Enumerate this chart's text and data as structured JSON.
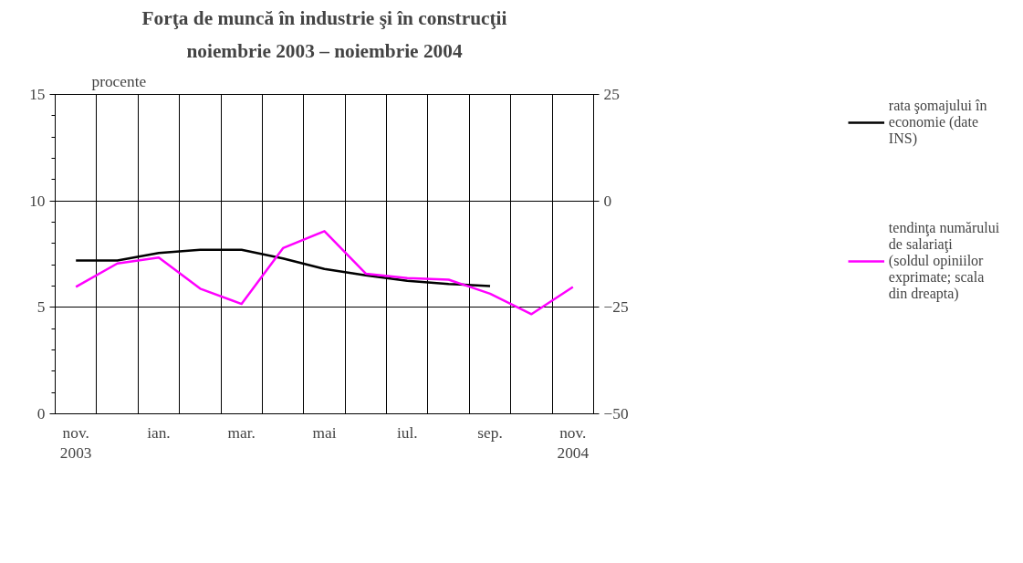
{
  "chart_data": {
    "type": "line",
    "title": "Forţa de muncă în industrie şi în construcţii",
    "subtitle": "noiembrie 2003 – noiembrie 2004",
    "ylabel": "procente",
    "categories": [
      "nov.\n2003",
      null,
      "ian.",
      null,
      "mar.",
      null,
      "mai",
      null,
      "iul.",
      null,
      "sep.",
      null,
      "nov.\n2004"
    ],
    "series": [
      {
        "name": "rata şomajului în economie (date INS)",
        "color": "#000000",
        "values": [
          7.2,
          7.2,
          7.55,
          7.7,
          7.7,
          7.3,
          6.8,
          6.5,
          6.25,
          6.1,
          6.0,
          null,
          null
        ]
      },
      {
        "name": "tendinţa numărului de salariaţi (soldul opiniilor exprimate; scala din dreapta)",
        "color": "#ff00ff",
        "axis": "y2",
        "values": [
          -20.2,
          -14.7,
          -13.3,
          -20.6,
          -24.2,
          -11.1,
          -7.1,
          -17.1,
          -18.1,
          -18.5,
          -21.8,
          -26.6,
          -20.2
        ]
      }
    ],
    "ylim": [
      0,
      15
    ],
    "yticks": [
      0,
      5,
      10,
      15
    ],
    "y2lim": [
      -50,
      25
    ],
    "y2ticks": [
      -50,
      -25,
      0,
      25
    ],
    "grid": true,
    "legend": "right",
    "line_style": "solid"
  }
}
